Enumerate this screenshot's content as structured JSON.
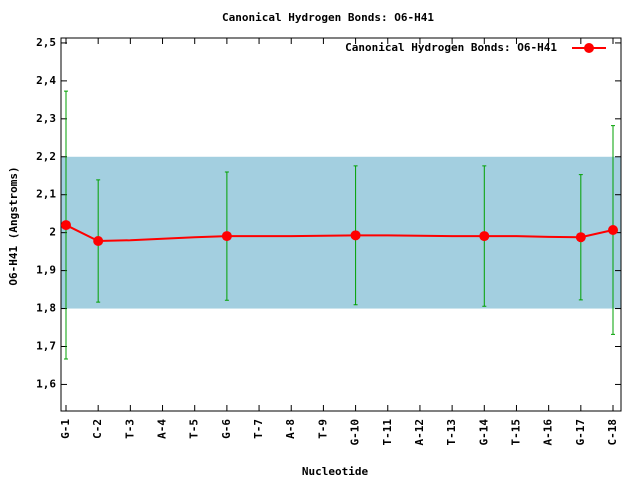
{
  "chart_data": {
    "type": "line",
    "title": "Canonical Hydrogen Bonds: O6-H41",
    "x_label": "Nucleotide",
    "y_label": "O6-H41 (Angstroms)",
    "categories": [
      "G-1",
      "C-2",
      "T-3",
      "A-4",
      "T-5",
      "G-6",
      "T-7",
      "A-8",
      "T-9",
      "G-10",
      "T-11",
      "A-12",
      "T-13",
      "G-14",
      "T-15",
      "A-16",
      "G-17",
      "C-18"
    ],
    "series": [
      {
        "name": "Canonical Hydrogen Bonds: O6-H41",
        "color": "#ff0000",
        "values": [
          2.02,
          1.978,
          1.98,
          1.984,
          1.988,
          1.991,
          1.991,
          1.991,
          1.992,
          1.993,
          1.993,
          1.992,
          1.991,
          1.991,
          1.991,
          1.989,
          1.988,
          2.007
        ],
        "errors": [
          0.353,
          0.161,
          null,
          null,
          null,
          0.169,
          null,
          null,
          null,
          0.183,
          null,
          null,
          null,
          0.185,
          null,
          null,
          0.165,
          0.275
        ],
        "error_color": "#00a000"
      }
    ],
    "band": [
      1.8,
      2.2
    ],
    "band_color": "#a3cfe0",
    "ylim": [
      1.53,
      2.513
    ],
    "yticks": [
      {
        "value": 1.6,
        "label": "1,6"
      },
      {
        "value": 1.7,
        "label": "1,7"
      },
      {
        "value": 1.8,
        "label": "1,8"
      },
      {
        "value": 1.9,
        "label": "1,9"
      },
      2,
      {
        "value": 2.1,
        "label": "2,1"
      },
      {
        "value": 2.2,
        "label": "2,2"
      },
      {
        "value": 2.3,
        "label": "2,3"
      },
      {
        "value": 2.4,
        "label": "2,4"
      },
      {
        "value": 2.5,
        "label": "2,5"
      }
    ],
    "legend": "top-right"
  }
}
